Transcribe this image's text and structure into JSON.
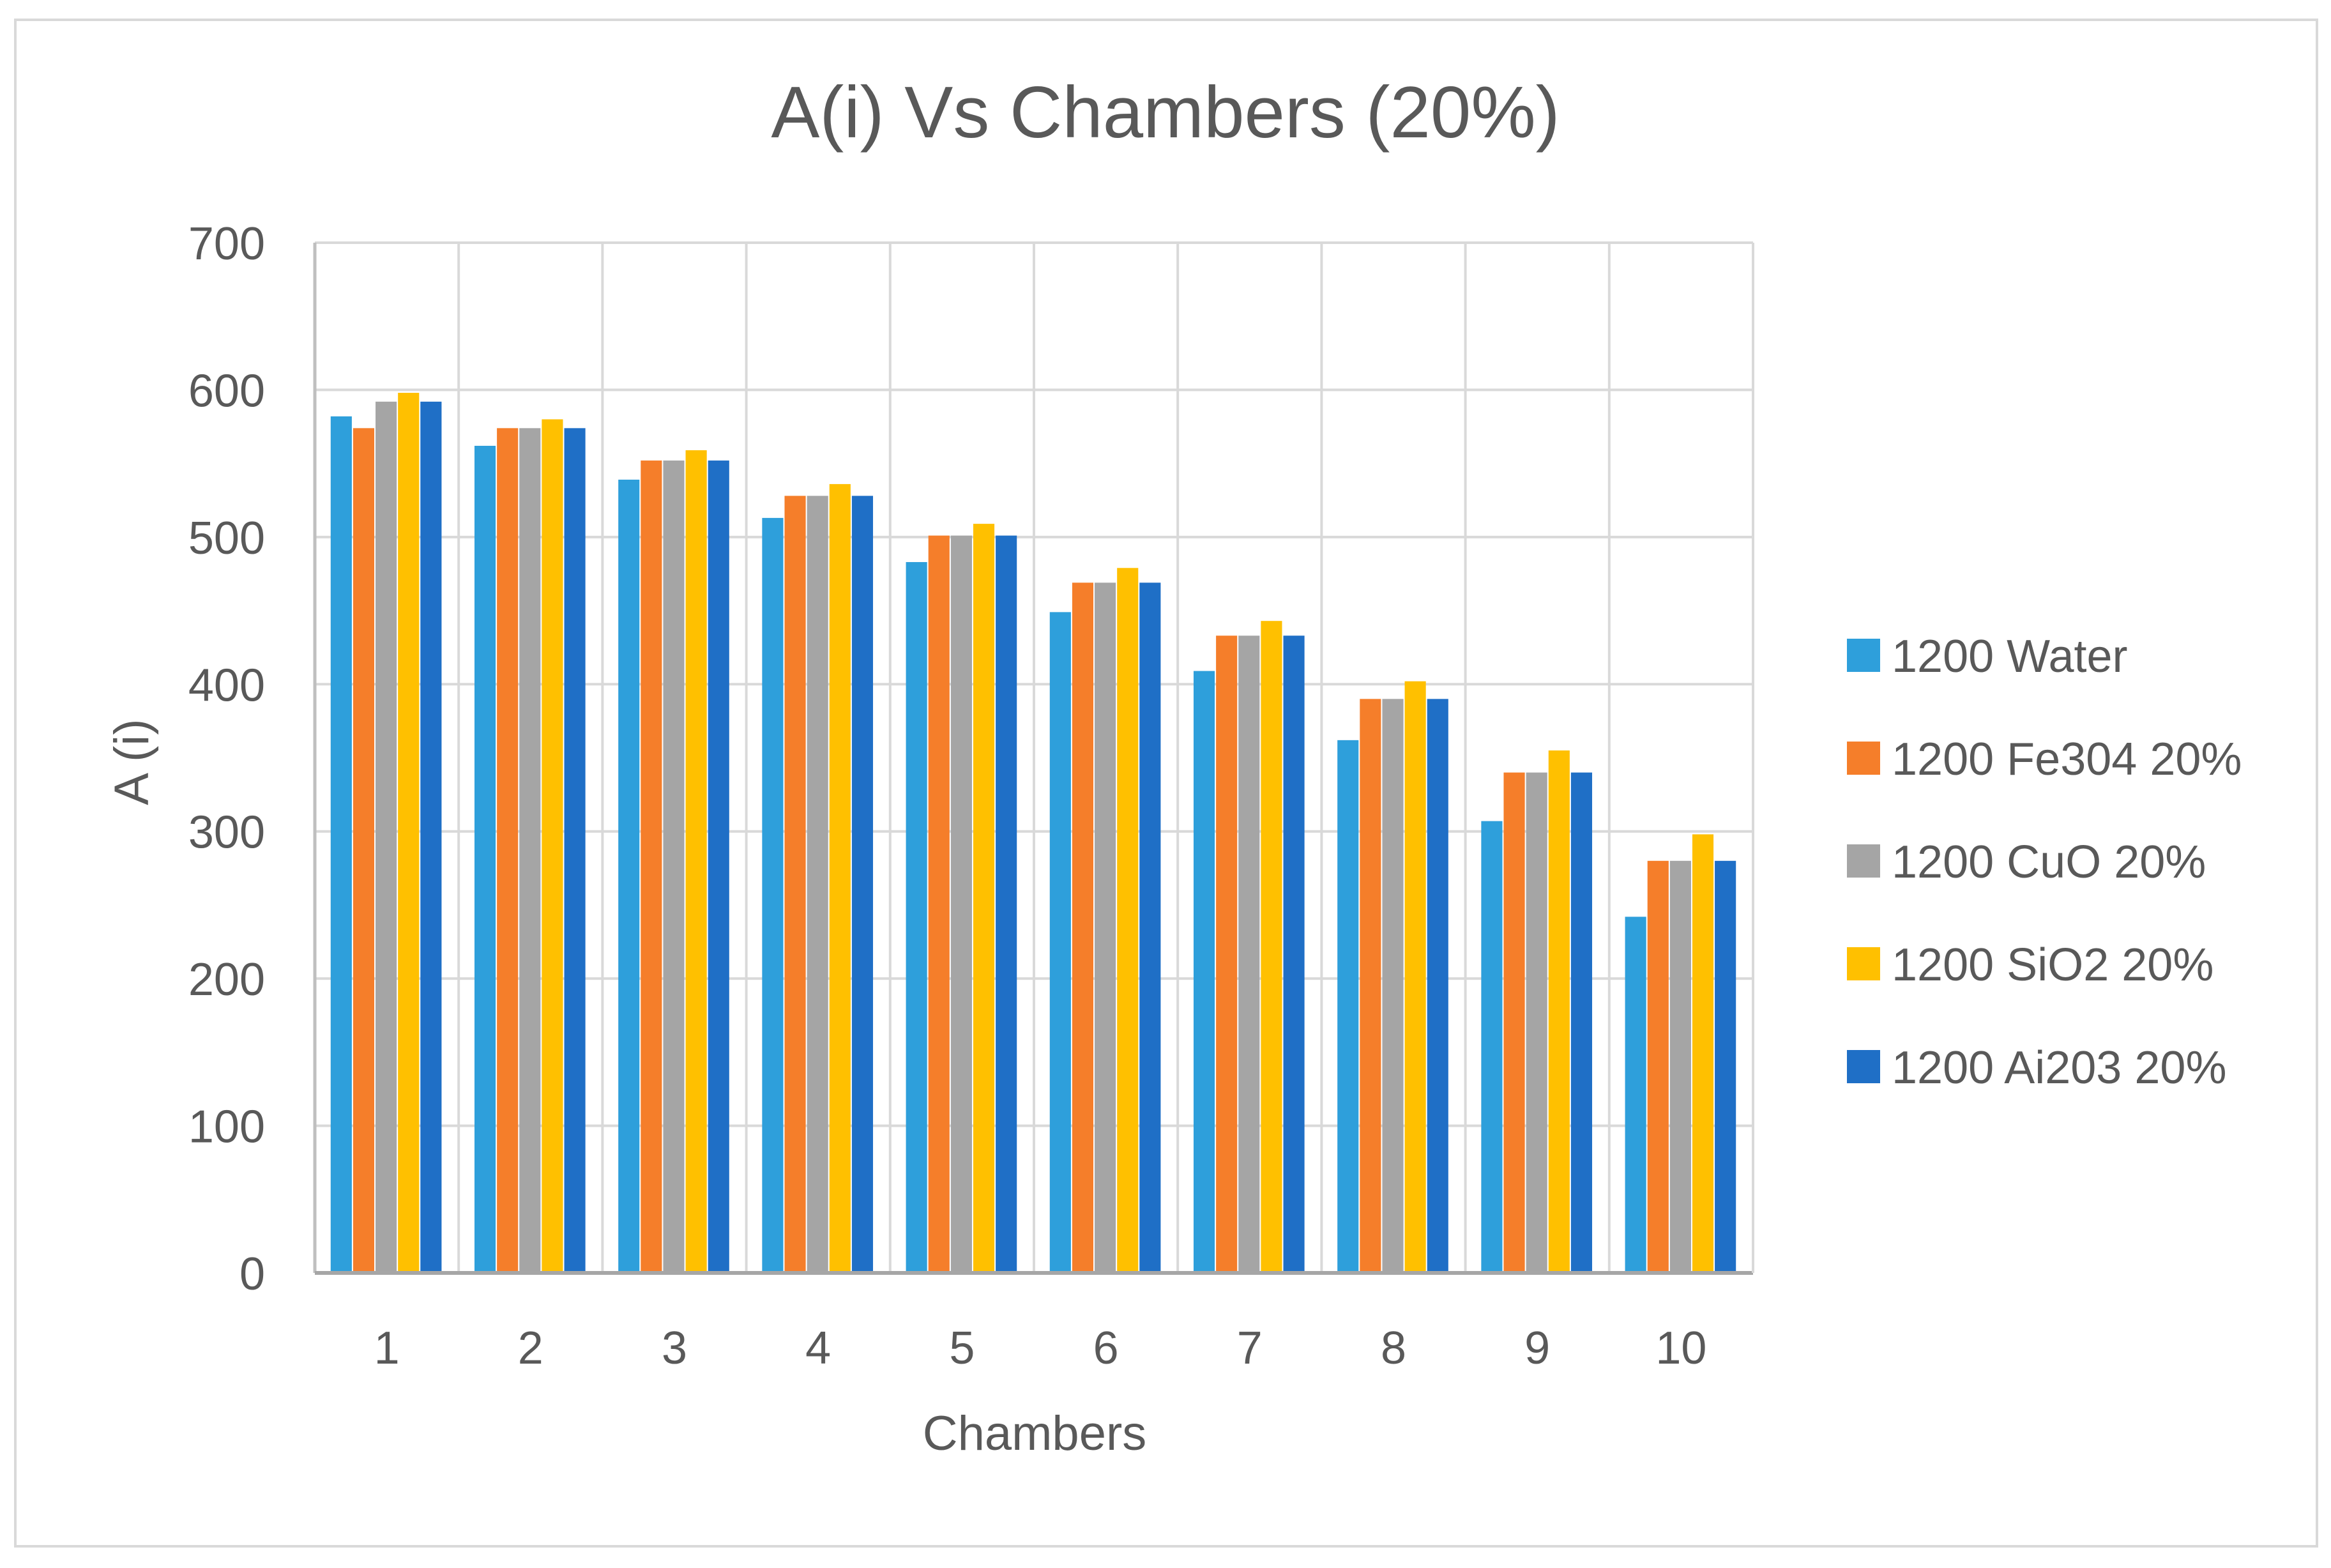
{
  "chart_data": {
    "type": "bar",
    "title": "A(i) Vs Chambers (20%)",
    "xlabel": "Chambers",
    "ylabel": "A (i)",
    "ylim": [
      0,
      700
    ],
    "yticks": [
      0,
      100,
      200,
      300,
      400,
      500,
      600,
      700
    ],
    "categories": [
      "1",
      "2",
      "3",
      "4",
      "5",
      "6",
      "7",
      "8",
      "9",
      "10"
    ],
    "grid": true,
    "legend_position": "right",
    "series": [
      {
        "name": "1200 Water",
        "color": "#2E9FDB",
        "values": [
          582,
          562,
          539,
          513,
          483,
          449,
          409,
          362,
          307,
          242
        ]
      },
      {
        "name": "1200 Fe304 20%",
        "color": "#F57E2A",
        "values": [
          574,
          574,
          552,
          528,
          501,
          469,
          433,
          390,
          340,
          280
        ]
      },
      {
        "name": "1200 CuO 20%",
        "color": "#A5A5A5",
        "values": [
          592,
          574,
          552,
          528,
          501,
          469,
          433,
          390,
          340,
          280
        ]
      },
      {
        "name": "1200 SiO2 20%",
        "color": "#FFC000",
        "values": [
          598,
          580,
          559,
          536,
          509,
          479,
          443,
          402,
          355,
          298
        ]
      },
      {
        "name": "1200 Ai203 20%",
        "color": "#1F6FC6",
        "values": [
          592,
          574,
          552,
          528,
          501,
          469,
          433,
          390,
          340,
          280
        ]
      }
    ]
  }
}
